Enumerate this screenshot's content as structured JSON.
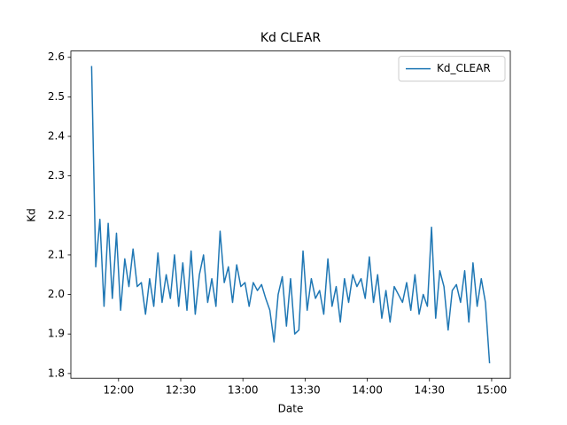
{
  "chart_data": {
    "type": "line",
    "title": "Kd CLEAR",
    "x_label": "Date",
    "y_label": "Kd",
    "x": [
      "11:47",
      "11:49",
      "11:51",
      "11:53",
      "11:55",
      "11:57",
      "11:59",
      "12:01",
      "12:03",
      "12:05",
      "12:07",
      "12:09",
      "12:11",
      "12:13",
      "12:15",
      "12:17",
      "12:19",
      "12:21",
      "12:23",
      "12:25",
      "12:27",
      "12:29",
      "12:31",
      "12:33",
      "12:35",
      "12:37",
      "12:39",
      "12:41",
      "12:43",
      "12:45",
      "12:47",
      "12:49",
      "12:51",
      "12:53",
      "12:55",
      "12:57",
      "12:59",
      "13:01",
      "13:03",
      "13:05",
      "13:07",
      "13:09",
      "13:11",
      "13:13",
      "13:15",
      "13:17",
      "13:19",
      "13:21",
      "13:23",
      "13:25",
      "13:27",
      "13:29",
      "13:31",
      "13:33",
      "13:35",
      "13:37",
      "13:39",
      "13:41",
      "13:43",
      "13:45",
      "13:47",
      "13:49",
      "13:51",
      "13:53",
      "13:55",
      "13:57",
      "13:59",
      "14:01",
      "14:03",
      "14:05",
      "14:07",
      "14:09",
      "14:11",
      "14:13",
      "14:15",
      "14:17",
      "14:19",
      "14:21",
      "14:23",
      "14:25",
      "14:27",
      "14:29",
      "14:31",
      "14:33",
      "14:35",
      "14:37",
      "14:39",
      "14:41",
      "14:43",
      "14:45",
      "14:47",
      "14:49",
      "14:51",
      "14:53",
      "14:55",
      "14:57",
      "14:59"
    ],
    "series": [
      {
        "name": "Kd_CLEAR",
        "color": "#1f77b4",
        "values": [
          2.578,
          2.07,
          2.19,
          1.97,
          2.18,
          1.99,
          2.155,
          1.96,
          2.09,
          2.02,
          2.115,
          2.02,
          2.03,
          1.95,
          2.04,
          1.97,
          2.105,
          1.98,
          2.05,
          1.99,
          2.1,
          1.97,
          2.08,
          1.96,
          2.11,
          1.95,
          2.05,
          2.1,
          1.98,
          2.04,
          1.97,
          2.16,
          2.03,
          2.07,
          1.98,
          2.075,
          2.02,
          2.03,
          1.97,
          2.03,
          2.01,
          2.025,
          1.99,
          1.96,
          1.88,
          2.0,
          2.045,
          1.92,
          2.04,
          1.9,
          1.91,
          2.11,
          1.96,
          2.04,
          1.99,
          2.01,
          1.95,
          2.09,
          1.97,
          2.02,
          1.93,
          2.04,
          1.98,
          2.05,
          2.02,
          2.04,
          1.99,
          2.095,
          1.98,
          2.05,
          1.94,
          2.01,
          1.93,
          2.02,
          2.0,
          1.98,
          2.03,
          1.96,
          2.05,
          1.95,
          2.0,
          1.97,
          2.17,
          1.94,
          2.06,
          2.02,
          1.91,
          2.01,
          2.025,
          1.98,
          2.06,
          1.93,
          2.08,
          1.97,
          2.04,
          1.98,
          1.826
        ]
      }
    ],
    "xlim": [
      "11:37",
      "15:09"
    ],
    "xticks": [
      "12:00",
      "12:30",
      "13:00",
      "13:30",
      "14:00",
      "14:30",
      "15:00"
    ],
    "ylim": [
      1.788,
      2.616
    ],
    "yticks": [
      1.8,
      1.9,
      {
        "value": 2,
        "label": "2.0"
      },
      2.1,
      2.2,
      2.3,
      2.4,
      2.5,
      2.6
    ],
    "legend": "upper right"
  }
}
